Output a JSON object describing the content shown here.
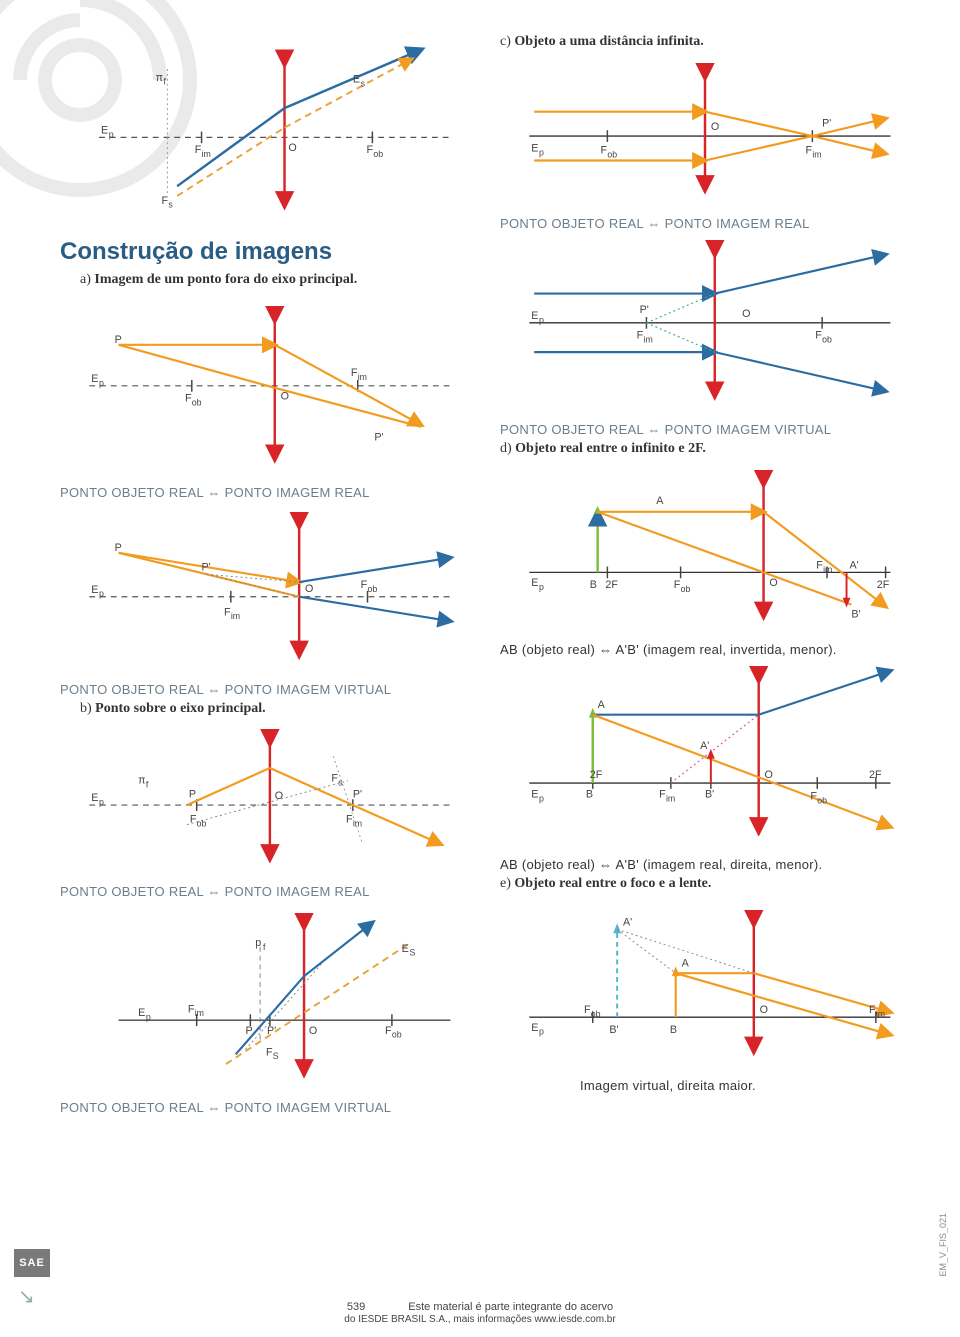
{
  "colors": {
    "blue": "#2b6ca3",
    "orange": "#f39b1f",
    "orange_dash": "#e8a33a",
    "red": "#d82428",
    "green": "#7bbf3a",
    "cyan": "#4cb6d6",
    "pink_dot": "#d95a8c",
    "gray_dash": "#555555",
    "teal_dot": "#3aa7a0",
    "heading": "#2a5d84",
    "caption": "#6b7e8c",
    "text": "#333333"
  },
  "heading": "Construção de imagens",
  "section_a": "a) Imagem de um ponto fora do eixo principal.",
  "section_b": "b) Ponto sobre o eixo principal.",
  "section_c": "c) Objeto a uma distância infinita.",
  "section_d": "d) Objeto real entre o infinito e 2F.",
  "section_e": "e) Objeto real entre o foco e a lente.",
  "cap_real_real": "PONTO OBJETO REAL ⇔ PONTO IMAGEM REAL",
  "cap_real_virtual": "PONTO OBJETO REAL ⇔ PONTO IMAGEM VIRTUAL",
  "ab_caption_1": "AB (objeto real)  ⇔  A'B' (imagem real, invertida, menor).",
  "ab_caption_2": "AB (objeto real)  ⇔  A'B' (imagem real, direita, menor).",
  "img_virtual": "Imagem virtual, direita maior.",
  "labels": {
    "Ep": "E",
    "Ep_sub": "p",
    "Es": "E",
    "Es_sub": "s",
    "pi_f": "π",
    "pi_f_sub": "f",
    "Fob": "F",
    "Fob_sub": "ob",
    "Fim": "F",
    "Fim_sub": "im",
    "Fs": "F",
    "Fs_sub": "s",
    "O": "O",
    "P": "P",
    "Pp": "P'",
    "A": "A",
    "Ap": "A'",
    "B": "B",
    "Bp": "B'",
    "twoF": "2F"
  },
  "footer": {
    "page": "539",
    "line1": "Este material é parte integrante do acervo",
    "line2": "do IESDE BRASIL S.A., mais informações www.iesde.com.br"
  },
  "side_code": "EM_V_FIS_021",
  "sae": "SAE"
}
